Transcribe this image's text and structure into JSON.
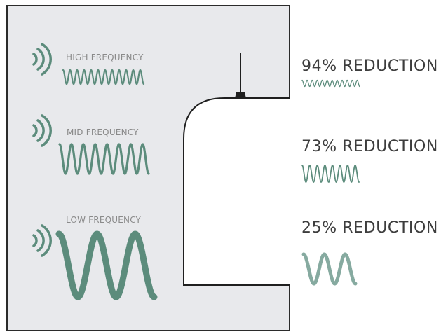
{
  "colors": {
    "wave_strong": "#5c8c7c",
    "wave_faded": "#86aaa0",
    "panel_bg": "#e8e9ec",
    "outline": "#1f1f1f"
  },
  "bands": [
    {
      "id": "high",
      "label": "HIGH FREQUENCY",
      "reduction": "94% REDUCTION",
      "wave_icon": "sound-wave-icon"
    },
    {
      "id": "mid",
      "label": "MID FREQUENCY",
      "reduction": "73% REDUCTION",
      "wave_icon": "sound-wave-icon"
    },
    {
      "id": "low",
      "label": "LOW FREQUENCY",
      "reduction": "25% REDUCTION",
      "wave_icon": "sound-wave-icon"
    }
  ],
  "icons": {
    "source": "sound-emitter-icon",
    "fixture": "pendant-lamp-icon"
  }
}
